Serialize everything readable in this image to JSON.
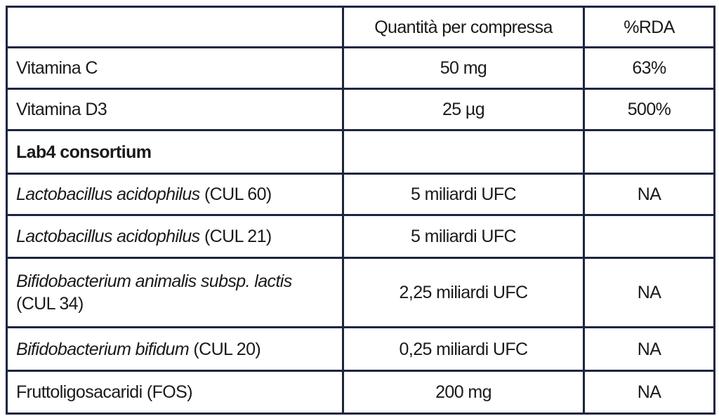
{
  "table": {
    "header": {
      "quantity": "Quantità per compressa",
      "rda": "%RDA"
    },
    "rows": [
      {
        "name": {
          "text": "Vitamina C"
        },
        "quantity": "50 mg",
        "rda": "63%"
      },
      {
        "name": {
          "text": "Vitamina D3"
        },
        "quantity": "25 µg",
        "rda": "500%"
      },
      {
        "name": {
          "bold": "Lab4 consortium"
        }
      },
      {
        "name": {
          "italic": "Lactobacillus acidophilus",
          "text": "(CUL 60)"
        },
        "quantity": "5 miliardi UFC",
        "rda": "NA"
      },
      {
        "name": {
          "italic": "Lactobacillus acidophilus",
          "text": "(CUL 21)"
        },
        "quantity": "5 miliardi UFC"
      },
      {
        "name": {
          "italic": "Bifidobacterium animalis subsp. lactis",
          "text": "(CUL 34)"
        },
        "quantity": "2,25 miliardi UFC",
        "rda": "NA"
      },
      {
        "name": {
          "italic": "Bifidobacterium bifidum",
          "text": "(CUL 20)"
        },
        "quantity": "0,25 miliardi UFC",
        "rda": "NA"
      },
      {
        "name": {
          "text": "Fruttoligosacaridi (FOS)"
        },
        "quantity": "200 mg",
        "rda": "NA"
      }
    ]
  }
}
